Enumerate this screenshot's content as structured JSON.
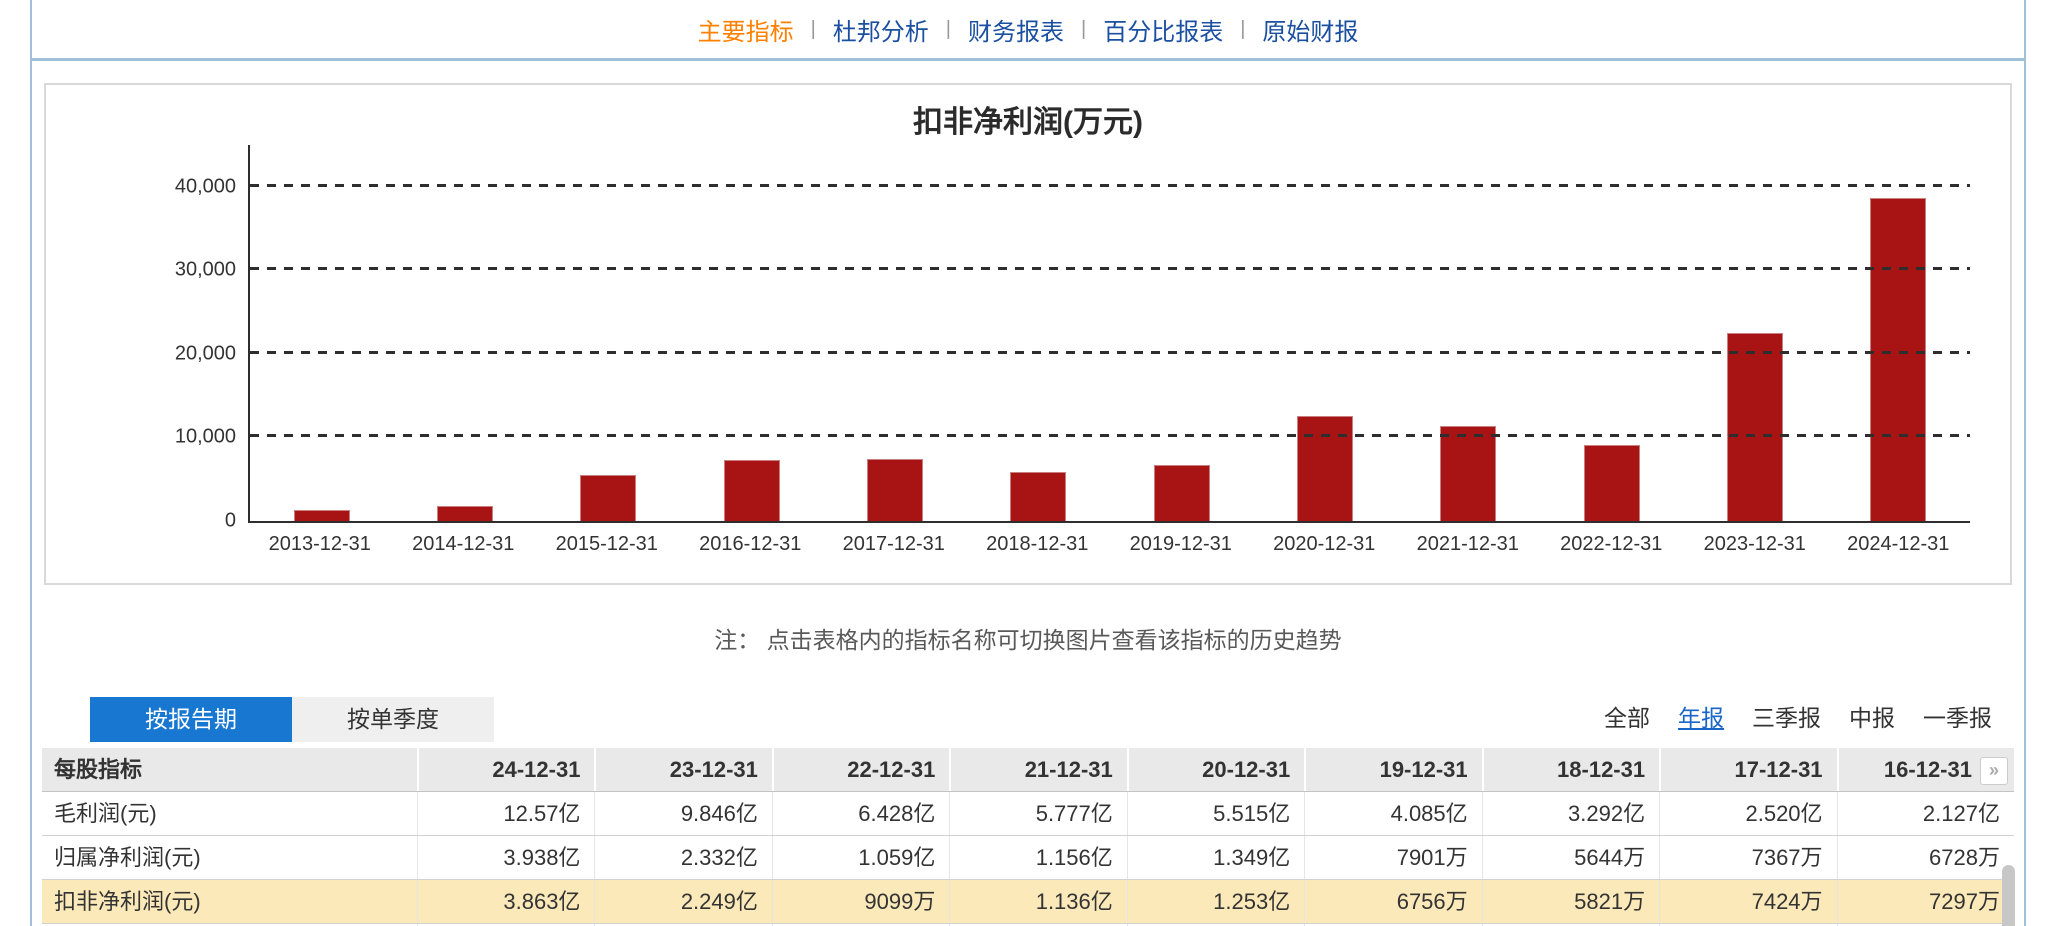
{
  "nav": {
    "separator": "|",
    "items": [
      {
        "label": "主要指标",
        "active": true
      },
      {
        "label": "杜邦分析",
        "active": false
      },
      {
        "label": "财务报表",
        "active": false
      },
      {
        "label": "百分比报表",
        "active": false
      },
      {
        "label": "原始财报",
        "active": false
      }
    ]
  },
  "chart_data": {
    "type": "bar",
    "title": "扣非净利润(万元)",
    "categories": [
      "2013-12-31",
      "2014-12-31",
      "2015-12-31",
      "2016-12-31",
      "2017-12-31",
      "2018-12-31",
      "2019-12-31",
      "2020-12-31",
      "2021-12-31",
      "2022-12-31",
      "2023-12-31",
      "2024-12-31"
    ],
    "values": [
      1300,
      1800,
      5500,
      7297,
      7424,
      5821,
      6756,
      12530,
      11360,
      9099,
      22490,
      38630
    ],
    "xlabel": "",
    "ylabel": "",
    "ylim": [
      0,
      45000
    ],
    "yticks": [
      0,
      10000,
      20000,
      30000,
      40000
    ],
    "ytick_labels": [
      "0",
      "10,000",
      "20,000",
      "30,000",
      "40,000"
    ],
    "grid": "horizontal-dashed",
    "legend": "none",
    "bar_color": "#a81414"
  },
  "note": {
    "text": "注： 点击表格内的指标名称可切换图片查看该指标的历史趋势"
  },
  "view_tabs": [
    {
      "label": "按报告期",
      "active": true
    },
    {
      "label": "按单季度",
      "active": false
    }
  ],
  "period_filters": [
    {
      "label": "全部",
      "active": false
    },
    {
      "label": "年报",
      "active": true
    },
    {
      "label": "三季报",
      "active": false
    },
    {
      "label": "中报",
      "active": false
    },
    {
      "label": "一季报",
      "active": false
    }
  ],
  "table": {
    "first_header": "每股指标",
    "columns": [
      "24-12-31",
      "23-12-31",
      "22-12-31",
      "21-12-31",
      "20-12-31",
      "19-12-31",
      "18-12-31",
      "17-12-31",
      "16-12-31"
    ],
    "more_icon": "»",
    "rows": [
      {
        "name": "毛利润(元)",
        "highlighted": false,
        "values": [
          "12.57亿",
          "9.846亿",
          "6.428亿",
          "5.777亿",
          "5.515亿",
          "4.085亿",
          "3.292亿",
          "2.520亿",
          "2.127亿"
        ]
      },
      {
        "name": "归属净利润(元)",
        "highlighted": false,
        "values": [
          "3.938亿",
          "2.332亿",
          "1.059亿",
          "1.156亿",
          "1.349亿",
          "7901万",
          "5644万",
          "7367万",
          "6728万"
        ]
      },
      {
        "name": "扣非净利润(元)",
        "highlighted": true,
        "values": [
          "3.863亿",
          "2.249亿",
          "9099万",
          "1.136亿",
          "1.253亿",
          "6756万",
          "5821万",
          "7424万",
          "7297万"
        ]
      }
    ]
  },
  "colors": {
    "nav_link_blue": "#1b4fa0",
    "nav_active_orange": "#ff8000",
    "page_border_blue": "#9fc0d6",
    "panel_border_gray": "#d9d9d9",
    "bar_red": "#a81414",
    "tab_active_blue": "#1777d1",
    "filter_link_blue": "#1a66c8",
    "table_header_gray": "#e9e9e9",
    "highlight_row_yellow": "#fbe9b9"
  }
}
